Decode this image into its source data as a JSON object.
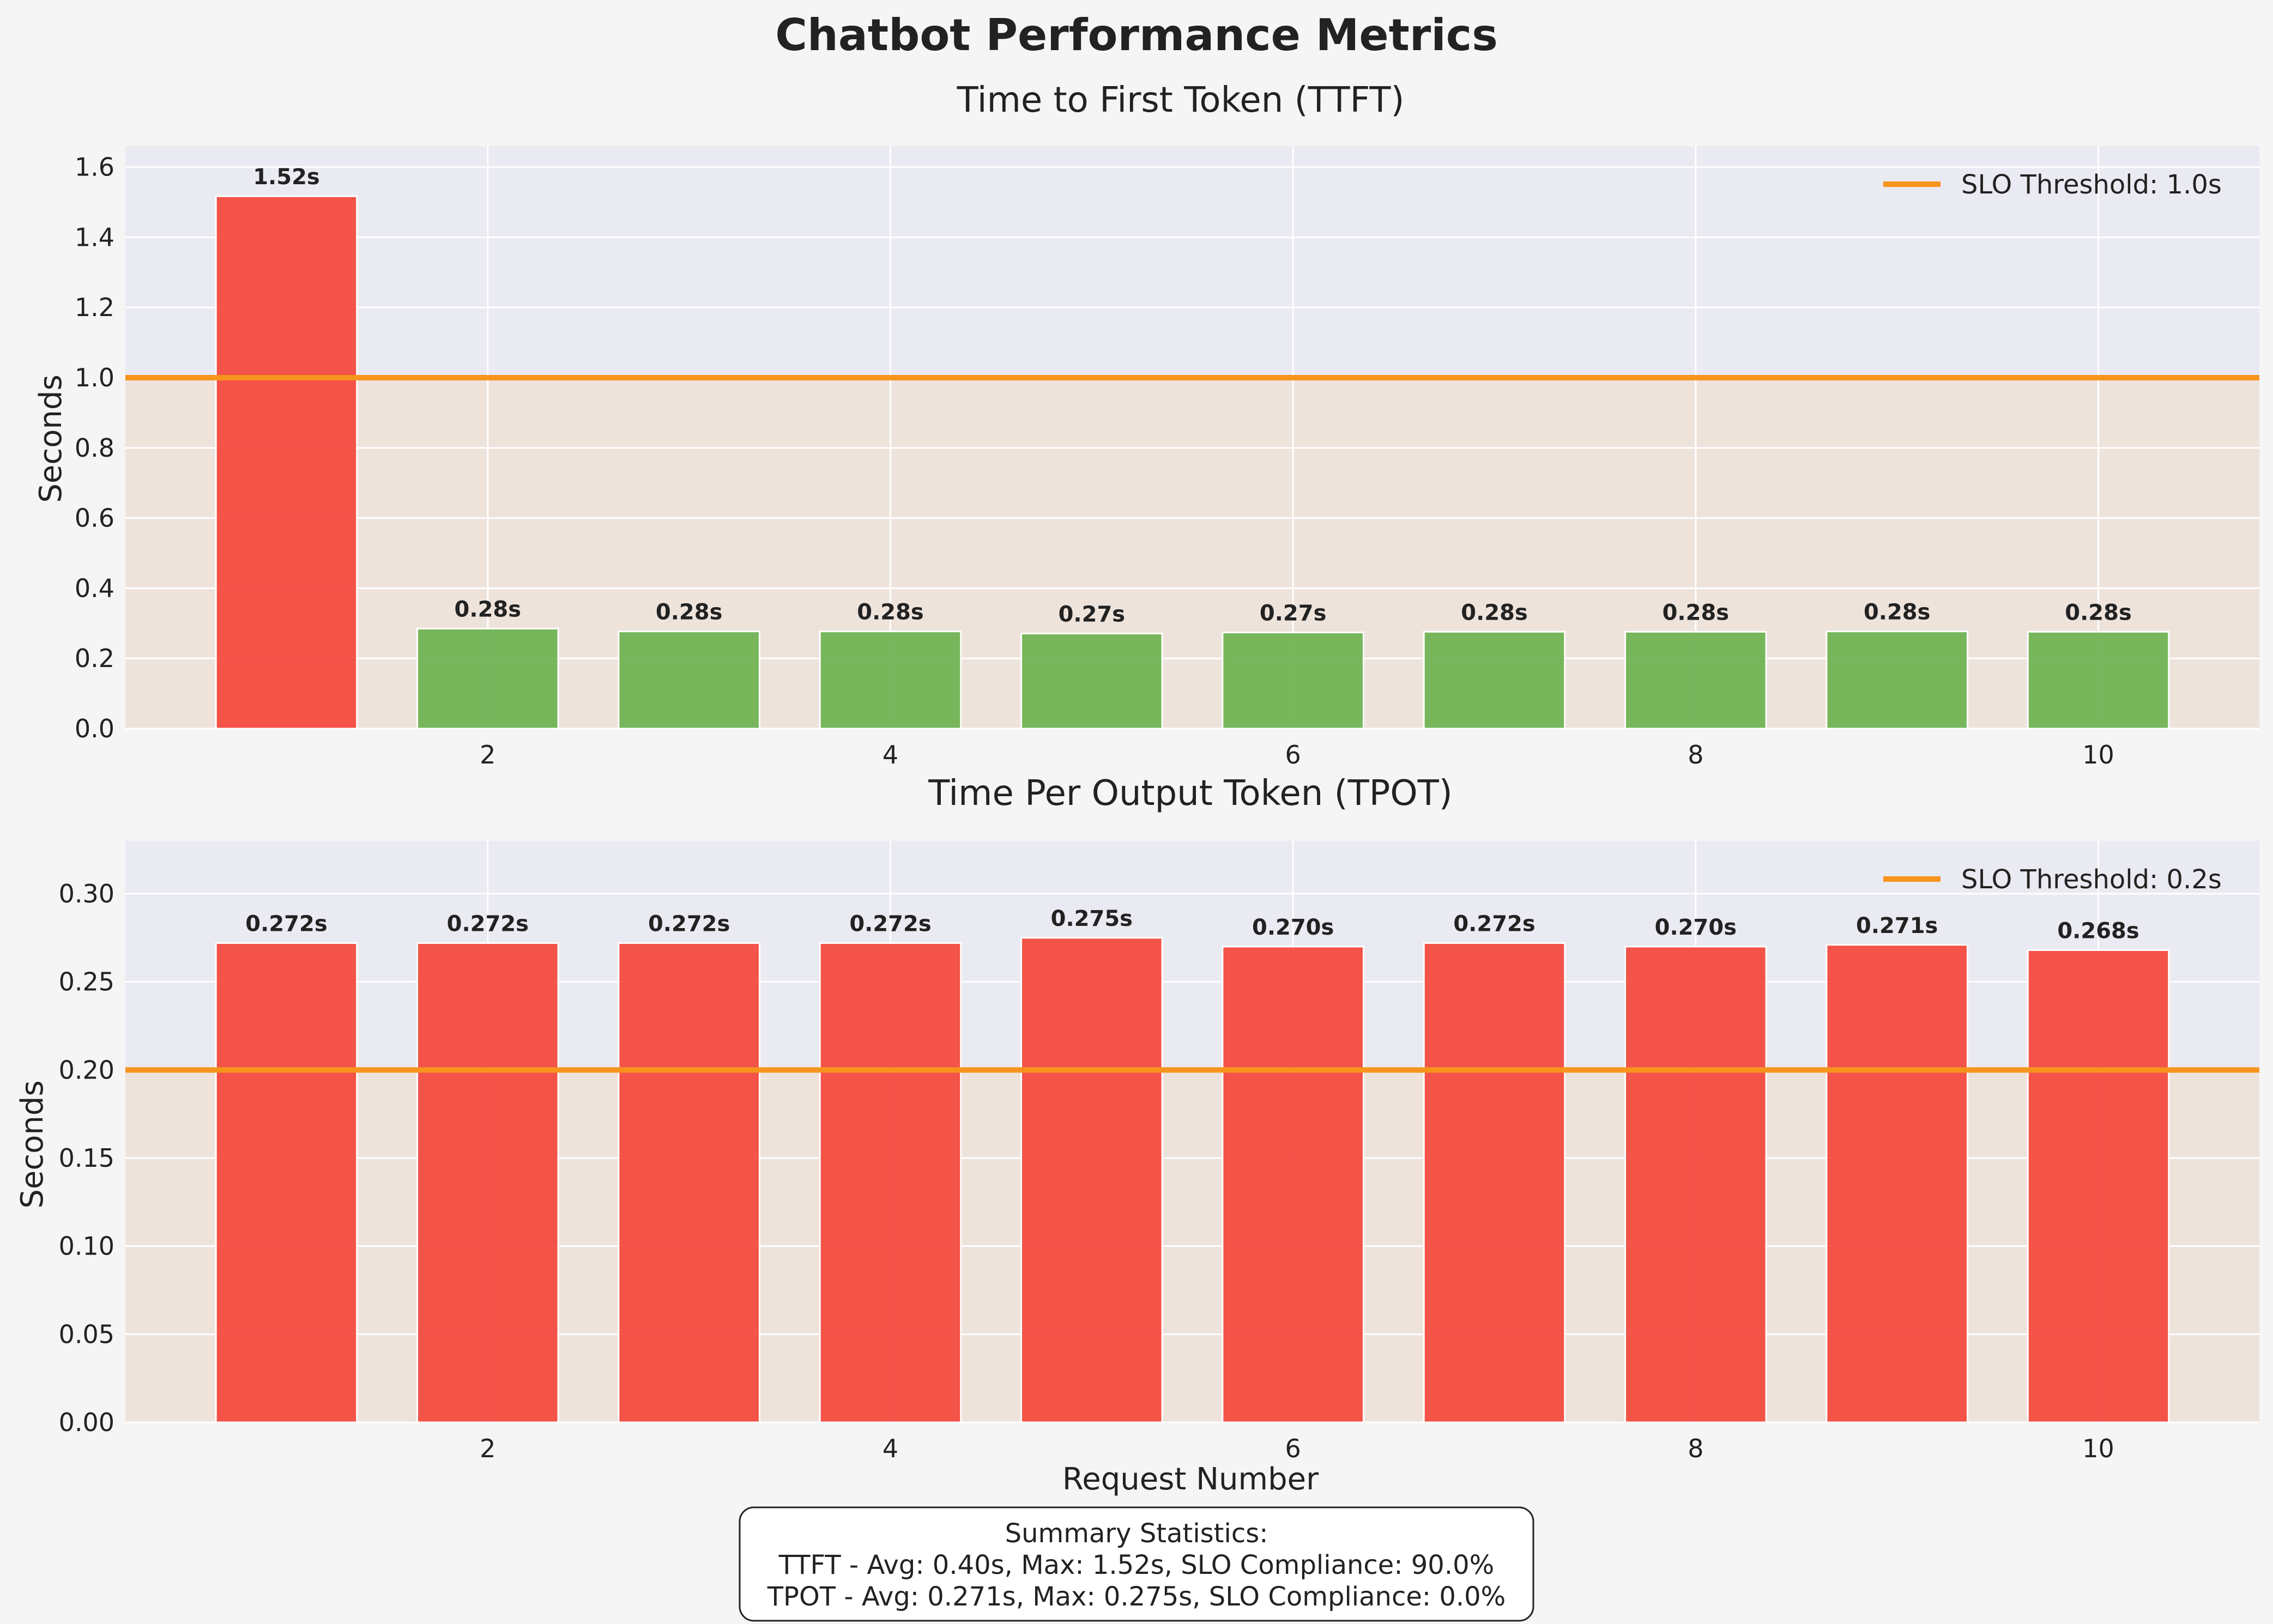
{
  "title": "Chatbot Performance Metrics",
  "chart_data": [
    {
      "type": "bar",
      "title": "Time to First Token (TTFT)",
      "xlabel": "",
      "ylabel": "Seconds",
      "ylim": [
        0,
        1.66
      ],
      "yticks": [
        "0.0",
        "0.2",
        "0.4",
        "0.6",
        "0.8",
        "1.0",
        "1.2",
        "1.4",
        "1.6"
      ],
      "xticks": [
        "2",
        "4",
        "6",
        "8",
        "10"
      ],
      "x": [
        1,
        2,
        3,
        4,
        5,
        6,
        7,
        8,
        9,
        10
      ],
      "values": [
        1.517,
        0.285,
        0.277,
        0.277,
        0.271,
        0.274,
        0.276,
        0.276,
        0.277,
        0.276
      ],
      "labels": [
        "1.52s",
        "0.28s",
        "0.28s",
        "0.28s",
        "0.27s",
        "0.27s",
        "0.28s",
        "0.28s",
        "0.28s",
        "0.28s"
      ],
      "threshold": 1.0,
      "legend": "SLO Threshold: 1.0s",
      "legend_position": "top-right",
      "grid": true
    },
    {
      "type": "bar",
      "title": "Time Per Output Token (TPOT)",
      "xlabel": "Request Number",
      "ylabel": "Seconds",
      "ylim": [
        0,
        0.33
      ],
      "yticks": [
        "0.00",
        "0.05",
        "0.10",
        "0.15",
        "0.20",
        "0.25",
        "0.30"
      ],
      "xticks": [
        "2",
        "4",
        "6",
        "8",
        "10"
      ],
      "x": [
        1,
        2,
        3,
        4,
        5,
        6,
        7,
        8,
        9,
        10
      ],
      "values": [
        0.272,
        0.272,
        0.272,
        0.272,
        0.275,
        0.27,
        0.272,
        0.27,
        0.271,
        0.268
      ],
      "labels": [
        "0.272s",
        "0.272s",
        "0.272s",
        "0.272s",
        "0.275s",
        "0.270s",
        "0.272s",
        "0.270s",
        "0.271s",
        "0.268s"
      ],
      "threshold": 0.2,
      "legend": "SLO Threshold: 0.2s",
      "legend_position": "top-right",
      "grid": true
    }
  ],
  "summary": {
    "line1": "Summary Statistics:",
    "line2": "TTFT - Avg: 0.40s, Max: 1.52s, SLO Compliance: 90.0%",
    "line3": "TPOT - Avg: 0.271s, Max: 0.275s, SLO Compliance: 0.0%"
  },
  "colors": {
    "fail": "#f44336",
    "pass": "#6ab04c",
    "threshold": "#f7941d",
    "plot_bg": "#eaeaf2",
    "below_band": "#f5d9b8"
  }
}
